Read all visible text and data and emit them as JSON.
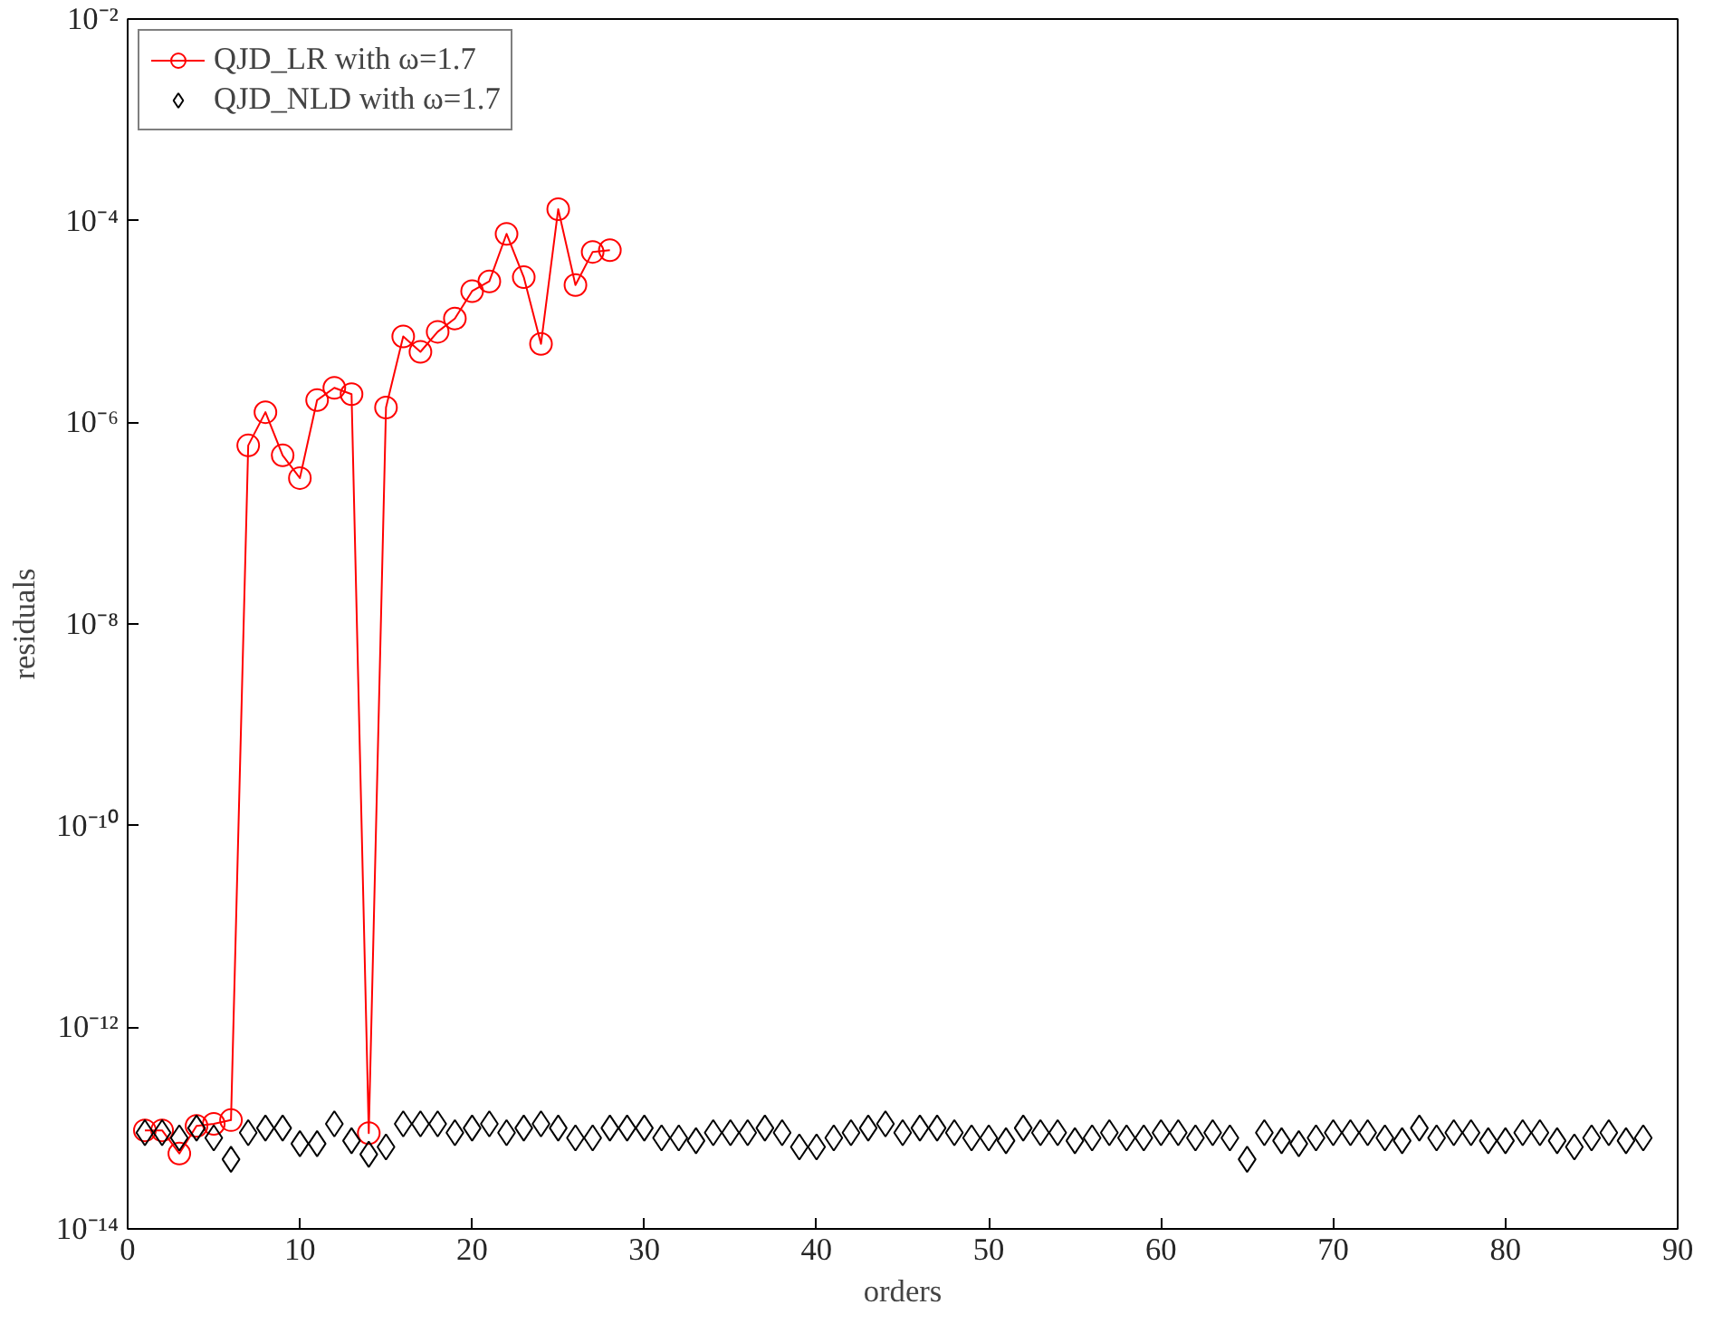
{
  "chart_data": {
    "type": "line",
    "xlabel": "orders",
    "ylabel": "residuals",
    "log": "y",
    "grid": false,
    "legend": "top left",
    "xlim": [
      0,
      90
    ],
    "xticks": [
      0,
      10,
      20,
      30,
      40,
      50,
      60,
      70,
      80,
      90
    ],
    "ylim": [
      1e-14,
      0.01
    ],
    "yticks": [
      {
        "value": 1e-14,
        "label": "10⁻¹⁴"
      },
      {
        "value": 1e-12,
        "label": "10⁻¹²"
      },
      {
        "value": 1e-10,
        "label": "10⁻¹⁰"
      },
      {
        "value": 1e-08,
        "label": "10⁻⁸"
      },
      {
        "value": 1e-06,
        "label": "10⁻⁶"
      },
      {
        "value": 0.0001,
        "label": "10⁻⁴"
      },
      {
        "value": 0.01,
        "label": "10⁻²"
      }
    ],
    "series": [
      {
        "name": "QJD_LR with ω=1.7",
        "marker": "circle",
        "line_style": "solid",
        "color": "#ff0000",
        "x": [
          1,
          2,
          3,
          4,
          5,
          6,
          7,
          8,
          9,
          10,
          11,
          12,
          13,
          14,
          15,
          16,
          17,
          18,
          19,
          20,
          21,
          22,
          23,
          24,
          25,
          26,
          27,
          28
        ],
        "values": [
          9.5e-14,
          9.5e-14,
          5.6e-14,
          1.05e-13,
          1.1e-13,
          1.2e-13,
          5.9e-07,
          1.26e-06,
          4.7e-07,
          2.8e-07,
          1.66e-06,
          2.2e-06,
          1.9e-06,
          8.9e-14,
          1.4e-06,
          7.1e-06,
          5e-06,
          7.9e-06,
          1.07e-05,
          2e-05,
          2.5e-05,
          7.4e-05,
          2.75e-05,
          6e-06,
          0.00013,
          2.3e-05,
          4.9e-05,
          5.1e-05
        ]
      },
      {
        "name": "QJD_NLD with ω=1.7",
        "type": "scatter",
        "marker": "diamond",
        "color": "#000000",
        "x": [
          1,
          2,
          3,
          4,
          5,
          6,
          7,
          8,
          9,
          10,
          11,
          12,
          13,
          14,
          15,
          16,
          17,
          18,
          19,
          20,
          21,
          22,
          23,
          24,
          25,
          26,
          27,
          28,
          29,
          30,
          31,
          32,
          33,
          34,
          35,
          36,
          37,
          38,
          39,
          40,
          41,
          42,
          43,
          44,
          45,
          46,
          47,
          48,
          49,
          50,
          51,
          52,
          53,
          54,
          55,
          56,
          57,
          58,
          59,
          60,
          61,
          62,
          63,
          64,
          65,
          66,
          67,
          68,
          69,
          70,
          71,
          72,
          73,
          74,
          75,
          76,
          77,
          78,
          79,
          80,
          81,
          82,
          83,
          84,
          85,
          86,
          87,
          88
        ],
        "values": [
          9e-14,
          9e-14,
          8e-14,
          1e-13,
          8e-14,
          4.9e-14,
          9e-14,
          1e-13,
          1e-13,
          7e-14,
          7e-14,
          1.1e-13,
          7.5e-14,
          5.5e-14,
          6.5e-14,
          1.1e-13,
          1.1e-13,
          1.1e-13,
          9e-14,
          1e-13,
          1.1e-13,
          9e-14,
          1e-13,
          1.1e-13,
          1e-13,
          8e-14,
          8e-14,
          1e-13,
          1e-13,
          1e-13,
          8e-14,
          8e-14,
          7.5e-14,
          9e-14,
          9e-14,
          9e-14,
          1e-13,
          9e-14,
          6.5e-14,
          6.5e-14,
          8e-14,
          9e-14,
          1e-13,
          1.1e-13,
          9e-14,
          1e-13,
          1e-13,
          9e-14,
          8e-14,
          8e-14,
          7.5e-14,
          1e-13,
          9e-14,
          9e-14,
          7.5e-14,
          8e-14,
          9e-14,
          8e-14,
          8e-14,
          9e-14,
          9e-14,
          8e-14,
          9e-14,
          8e-14,
          4.9e-14,
          9e-14,
          7.5e-14,
          7e-14,
          8e-14,
          9e-14,
          9e-14,
          9e-14,
          8e-14,
          7.5e-14,
          1e-13,
          8e-14,
          9e-14,
          9e-14,
          7.5e-14,
          7.5e-14,
          9e-14,
          9e-14,
          7.5e-14,
          6.5e-14,
          8e-14,
          9e-14,
          7.5e-14,
          8e-14
        ]
      }
    ]
  }
}
